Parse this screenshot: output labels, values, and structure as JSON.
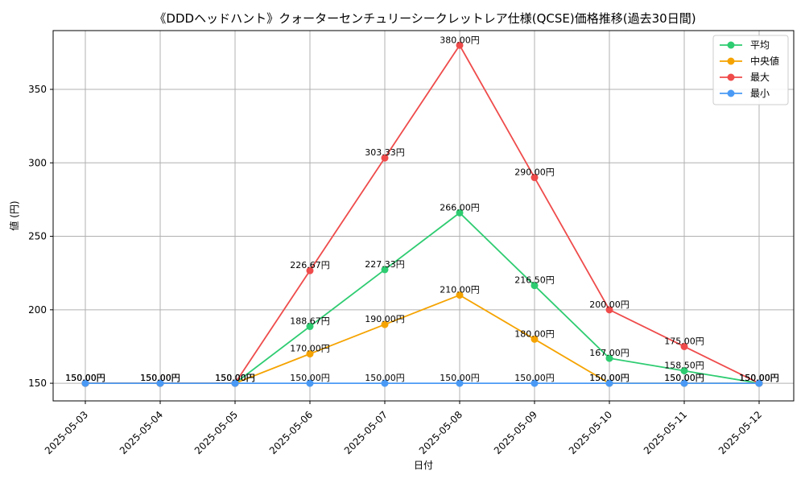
{
  "chart_data": {
    "type": "line",
    "title": "《DDDヘッドハント》クォーターセンチュリーシークレットレア仕様(QCSE)価格推移(過去30日間)",
    "xlabel": "日付",
    "ylabel": "値 (円)",
    "ylim": [
      138,
      390
    ],
    "yticks": [
      150,
      200,
      250,
      300,
      350
    ],
    "grid": true,
    "legend_position": "top-right",
    "label_suffix": "円",
    "x": [
      "2025-05-03",
      "2025-05-04",
      "2025-05-05",
      "2025-05-06",
      "2025-05-07",
      "2025-05-08",
      "2025-05-09",
      "2025-05-10",
      "2025-05-11",
      "2025-05-12"
    ],
    "series": [
      {
        "name": "平均",
        "color": "#2ecc71",
        "values": [
          150,
          150,
          150,
          188.67,
          227.33,
          266,
          216.5,
          167,
          158.5,
          150
        ]
      },
      {
        "name": "中央値",
        "color": "#f5a300",
        "values": [
          150,
          150,
          150,
          170,
          190,
          210,
          180,
          150,
          150,
          150
        ]
      },
      {
        "name": "最大",
        "color": "#ef4b4b",
        "values": [
          150,
          150,
          150,
          226.67,
          303.33,
          380,
          290,
          200,
          175,
          150
        ]
      },
      {
        "name": "最小",
        "color": "#4a9af5",
        "values": [
          150,
          150,
          150,
          150,
          150,
          150,
          150,
          150,
          150,
          150
        ]
      }
    ]
  }
}
